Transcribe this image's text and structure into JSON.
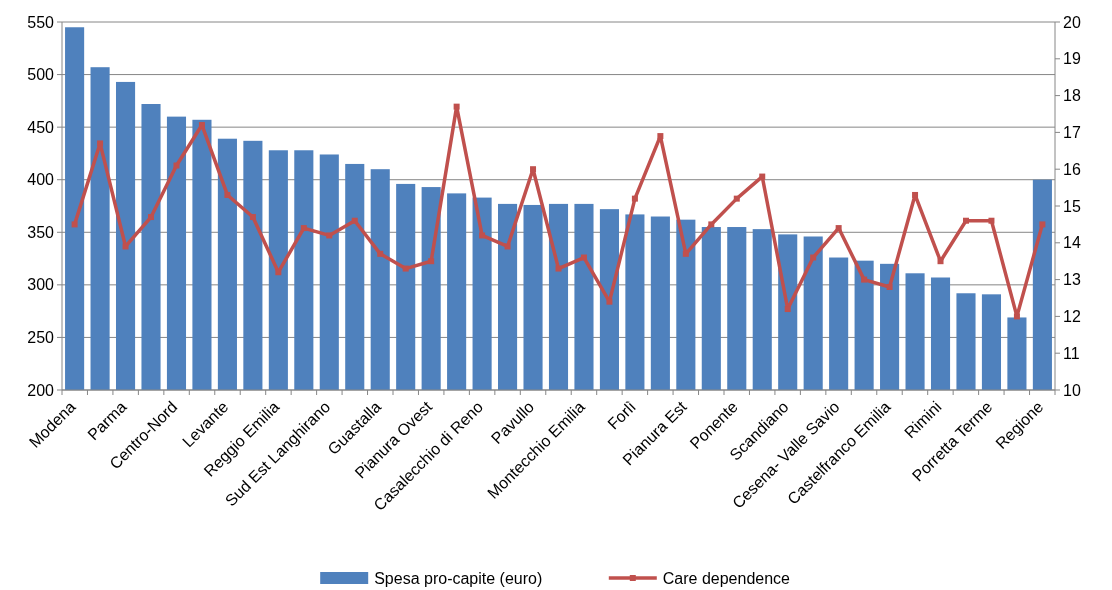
{
  "chart_data": {
    "type": "bar",
    "categories": [
      "Modena",
      null,
      "Parma",
      null,
      "Centro-Nord",
      null,
      "Levante",
      null,
      "Reggio Emilia",
      null,
      "Sud Est Langhirano",
      null,
      "Guastalla",
      null,
      "Pianura Ovest",
      null,
      "Casalecchio di Reno",
      null,
      "Pavullo",
      null,
      "Montecchio Emilia",
      null,
      "Forlì",
      null,
      "Pianura Est",
      null,
      "Ponente",
      null,
      "Scandiano",
      null,
      "Cesena- Valle Savio",
      null,
      "Castelfranco Emilia",
      null,
      "Rimini",
      null,
      "Porretta Terme",
      null,
      "Regione"
    ],
    "series": [
      {
        "name": "Spesa pro-capite (euro)",
        "type": "bar",
        "color": "#4f81bd",
        "values": [
          545,
          507,
          493,
          472,
          460,
          457,
          439,
          437,
          428,
          428,
          424,
          415,
          410,
          396,
          393,
          387,
          383,
          377,
          376,
          377,
          377,
          372,
          367,
          365,
          362,
          355,
          355,
          353,
          348,
          346,
          326,
          323,
          320,
          311,
          307,
          292,
          291,
          269,
          400
        ]
      },
      {
        "name": "Care dependence",
        "type": "line",
        "axis": "y2",
        "color": "#c0504d",
        "values": [
          14.5,
          16.7,
          13.9,
          14.7,
          16.1,
          17.2,
          15.3,
          14.7,
          13.2,
          14.4,
          14.2,
          14.6,
          13.7,
          13.3,
          13.5,
          17.7,
          14.2,
          13.9,
          16.0,
          13.3,
          13.6,
          12.4,
          15.2,
          16.9,
          13.7,
          14.5,
          15.2,
          15.8,
          12.2,
          13.6,
          14.4,
          13.0,
          12.8,
          15.3,
          13.5,
          14.6,
          14.6,
          12.0,
          14.5
        ]
      }
    ],
    "ylim": [
      200,
      550
    ],
    "yticks": [
      200,
      250,
      300,
      350,
      400,
      450,
      500,
      550
    ],
    "y2lim": [
      10,
      20
    ],
    "y2ticks": [
      10,
      11,
      12,
      13,
      14,
      15,
      16,
      17,
      18,
      19,
      20
    ],
    "grid": "y",
    "legend": "bottom",
    "marker": "square",
    "line_style": "solid"
  }
}
